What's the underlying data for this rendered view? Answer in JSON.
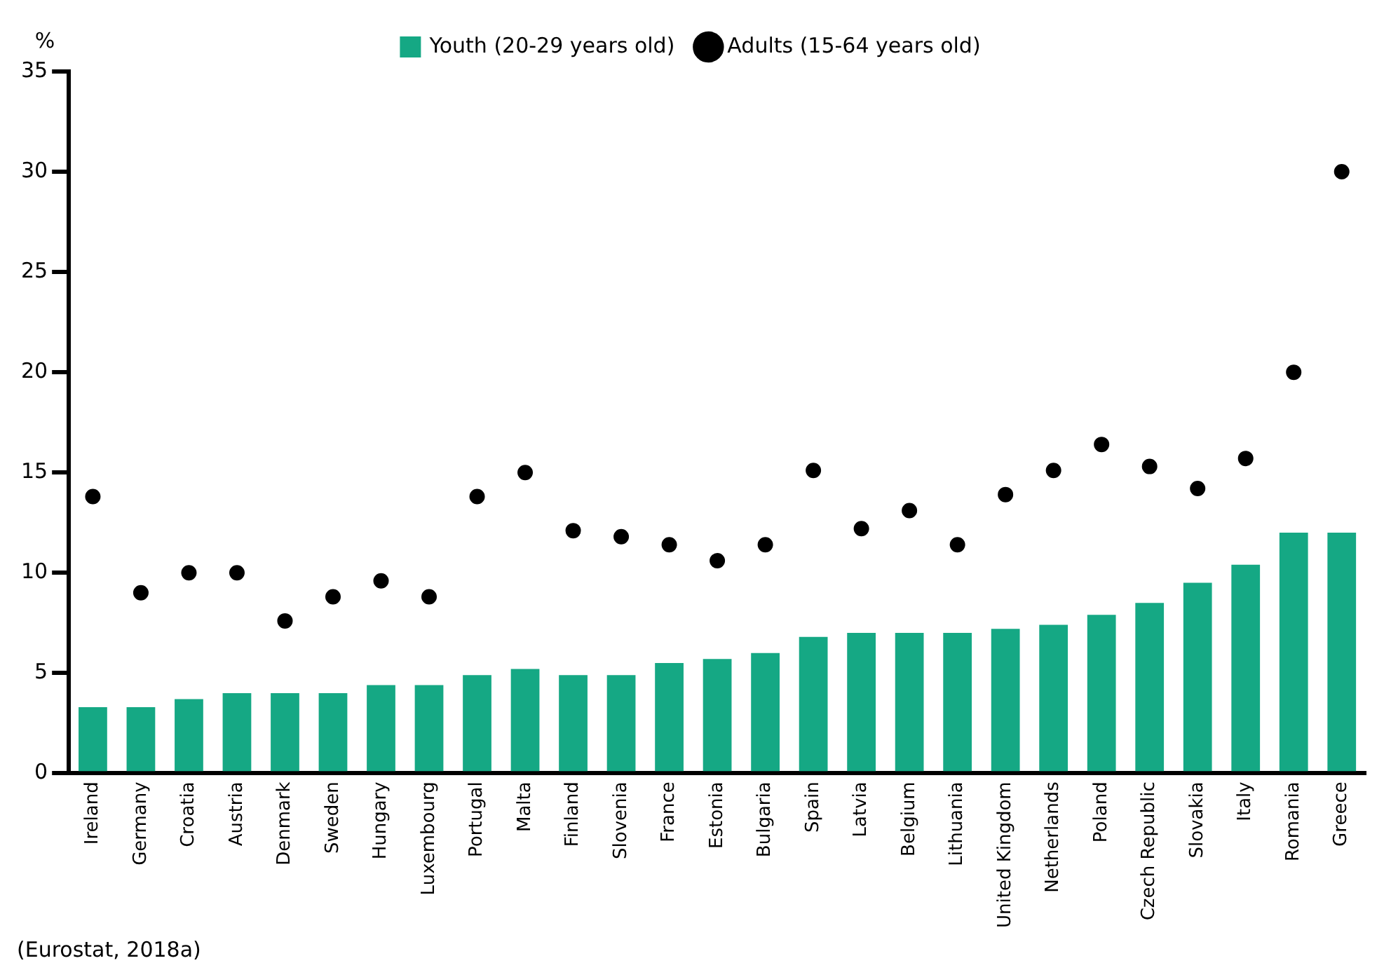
{
  "chart_data": {
    "type": "bar",
    "ylabel": "%",
    "categories": [
      "Ireland",
      "Germany",
      "Croatia",
      "Austria",
      "Denmark",
      "Sweden",
      "Hungary",
      "Luxembourg",
      "Portugal",
      "Malta",
      "Finland",
      "Slovenia",
      "France",
      "Estonia",
      "Bulgaria",
      "Spain",
      "Latvia",
      "Belgium",
      "Lithuania",
      "United Kingdom",
      "Netherlands",
      "Poland",
      "Czech Republic",
      "Slovakia",
      "Italy",
      "Romania",
      "Greece"
    ],
    "series": [
      {
        "name": "Youth (20-29 years old)",
        "color": "#15a884",
        "values": [
          3.3,
          3.3,
          3.7,
          4.0,
          4.0,
          4.0,
          4.4,
          4.4,
          4.9,
          5.2,
          4.9,
          4.9,
          5.5,
          5.7,
          6.0,
          6.8,
          7.0,
          7.0,
          7.0,
          7.2,
          7.4,
          7.9,
          8.5,
          9.5,
          10.4,
          12.0,
          12.0
        ]
      },
      {
        "name": "Adults (15-64 years old)",
        "type": "scatter",
        "color": "#000000",
        "values": [
          13.8,
          9.0,
          10.0,
          10.0,
          7.6,
          8.8,
          9.6,
          8.8,
          13.8,
          15.0,
          12.1,
          11.8,
          11.4,
          10.6,
          11.4,
          15.1,
          12.2,
          13.1,
          11.4,
          13.9,
          15.1,
          16.4,
          15.3,
          14.2,
          15.7,
          20.0,
          30.0
        ]
      }
    ],
    "ylim": [
      0,
      35
    ],
    "yticks": [
      0,
      5,
      10,
      15,
      20,
      25,
      30,
      35
    ],
    "grid": false,
    "legend": "top",
    "marker": "circle",
    "annotations": [
      "(Eurostat, 2018a)"
    ]
  }
}
